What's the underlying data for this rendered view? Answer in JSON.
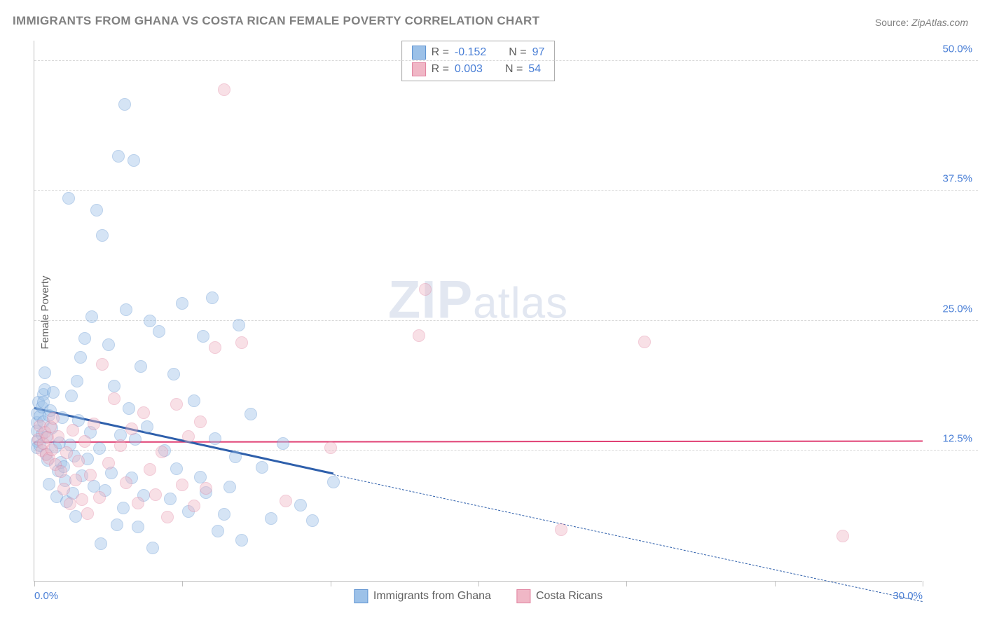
{
  "title": "IMMIGRANTS FROM GHANA VS COSTA RICAN FEMALE POVERTY CORRELATION CHART",
  "source_label": "Source: ",
  "source_value": "ZipAtlas.com",
  "ylabel": "Female Poverty",
  "watermark_a": "ZIP",
  "watermark_b": "atlas",
  "chart": {
    "type": "scatter",
    "xlim": [
      0,
      30
    ],
    "ylim": [
      0,
      52
    ],
    "background_color": "#ffffff",
    "grid_color": "#d8d8d8",
    "axis_color": "#bfbfbf",
    "tick_label_color": "#4a7fd6",
    "yticks": [
      12.5,
      25.0,
      37.5,
      50.0
    ],
    "ytick_labels": [
      "12.5%",
      "25.0%",
      "37.5%",
      "50.0%"
    ],
    "xticks": [
      0,
      5,
      10,
      15,
      20,
      25,
      30
    ],
    "xtick_labels": [
      "0.0%",
      "",
      "",
      "",
      "",
      "",
      "30.0%"
    ],
    "marker_radius": 9,
    "marker_opacity": 0.42
  },
  "series": [
    {
      "name": "Immigrants from Ghana",
      "fill": "#9cc1e8",
      "stroke": "#5e93d1",
      "trend_color": "#2e5fab",
      "trend_width": 3,
      "trend": {
        "x1": 0,
        "y1": 16.5,
        "x2": 10.1,
        "y2": 10.2,
        "x2_dash": 30.0,
        "y2_dash": -2.0
      },
      "R": "-0.152",
      "N": "97",
      "points": [
        [
          0.1,
          15.2
        ],
        [
          0.1,
          14.4
        ],
        [
          0.1,
          13.4
        ],
        [
          0.1,
          12.8
        ],
        [
          0.1,
          16.1
        ],
        [
          0.15,
          17.2
        ],
        [
          0.2,
          15.8
        ],
        [
          0.2,
          13.0
        ],
        [
          0.25,
          14.1
        ],
        [
          0.25,
          16.7
        ],
        [
          0.3,
          15.3
        ],
        [
          0.3,
          17.9
        ],
        [
          0.3,
          17.2
        ],
        [
          0.35,
          18.4
        ],
        [
          0.35,
          20.0
        ],
        [
          0.4,
          13.8
        ],
        [
          0.4,
          12.2
        ],
        [
          0.45,
          11.6
        ],
        [
          0.5,
          15.9
        ],
        [
          0.5,
          9.3
        ],
        [
          0.55,
          16.4
        ],
        [
          0.6,
          14.7
        ],
        [
          0.65,
          18.1
        ],
        [
          0.7,
          12.9
        ],
        [
          0.75,
          8.1
        ],
        [
          0.8,
          10.6
        ],
        [
          0.85,
          13.3
        ],
        [
          0.9,
          11.4
        ],
        [
          0.95,
          15.7
        ],
        [
          1.0,
          11.0
        ],
        [
          1.05,
          9.6
        ],
        [
          1.1,
          7.6
        ],
        [
          1.15,
          36.8
        ],
        [
          1.2,
          13.1
        ],
        [
          1.25,
          17.8
        ],
        [
          1.3,
          8.4
        ],
        [
          1.35,
          12.0
        ],
        [
          1.4,
          6.2
        ],
        [
          1.45,
          19.2
        ],
        [
          1.5,
          15.4
        ],
        [
          1.55,
          21.5
        ],
        [
          1.6,
          10.1
        ],
        [
          1.7,
          23.3
        ],
        [
          1.8,
          11.7
        ],
        [
          1.9,
          14.3
        ],
        [
          1.95,
          25.4
        ],
        [
          2.0,
          9.1
        ],
        [
          2.1,
          35.6
        ],
        [
          2.2,
          12.7
        ],
        [
          2.25,
          3.6
        ],
        [
          2.3,
          33.2
        ],
        [
          2.4,
          8.7
        ],
        [
          2.5,
          22.7
        ],
        [
          2.6,
          10.4
        ],
        [
          2.7,
          18.7
        ],
        [
          2.8,
          5.4
        ],
        [
          2.85,
          40.8
        ],
        [
          2.9,
          14.0
        ],
        [
          3.0,
          7.0
        ],
        [
          3.05,
          45.8
        ],
        [
          3.1,
          26.1
        ],
        [
          3.2,
          16.6
        ],
        [
          3.3,
          9.9
        ],
        [
          3.35,
          40.4
        ],
        [
          3.4,
          13.6
        ],
        [
          3.5,
          5.2
        ],
        [
          3.6,
          20.6
        ],
        [
          3.7,
          8.2
        ],
        [
          3.8,
          14.8
        ],
        [
          3.9,
          25.0
        ],
        [
          4.0,
          3.2
        ],
        [
          4.2,
          24.0
        ],
        [
          4.4,
          12.5
        ],
        [
          4.6,
          7.9
        ],
        [
          4.7,
          19.9
        ],
        [
          4.8,
          10.8
        ],
        [
          5.0,
          26.7
        ],
        [
          5.2,
          6.7
        ],
        [
          5.4,
          17.3
        ],
        [
          5.6,
          10.0
        ],
        [
          5.7,
          23.5
        ],
        [
          5.8,
          8.5
        ],
        [
          6.0,
          27.2
        ],
        [
          6.1,
          13.7
        ],
        [
          6.2,
          4.8
        ],
        [
          6.4,
          6.4
        ],
        [
          6.6,
          9.0
        ],
        [
          6.8,
          11.9
        ],
        [
          6.9,
          24.6
        ],
        [
          7.0,
          3.9
        ],
        [
          7.3,
          16.0
        ],
        [
          7.7,
          10.9
        ],
        [
          8.0,
          6.0
        ],
        [
          8.4,
          13.2
        ],
        [
          9.0,
          7.3
        ],
        [
          9.4,
          5.8
        ],
        [
          10.1,
          9.5
        ]
      ]
    },
    {
      "name": "Costa Ricans",
      "fill": "#f0b7c6",
      "stroke": "#e183a0",
      "trend_color": "#e04074",
      "trend_width": 2,
      "trend": {
        "x1": 0,
        "y1": 13.3,
        "x2": 30.0,
        "y2": 13.4
      },
      "R": "0.003",
      "N": "54",
      "points": [
        [
          0.15,
          13.6
        ],
        [
          0.2,
          14.9
        ],
        [
          0.25,
          12.5
        ],
        [
          0.3,
          13.2
        ],
        [
          0.35,
          14.3
        ],
        [
          0.4,
          12.1
        ],
        [
          0.45,
          13.8
        ],
        [
          0.5,
          11.8
        ],
        [
          0.55,
          14.8
        ],
        [
          0.6,
          12.6
        ],
        [
          0.65,
          15.6
        ],
        [
          0.7,
          11.2
        ],
        [
          0.8,
          13.9
        ],
        [
          0.9,
          10.5
        ],
        [
          1.0,
          8.8
        ],
        [
          1.1,
          12.3
        ],
        [
          1.2,
          7.4
        ],
        [
          1.3,
          14.5
        ],
        [
          1.4,
          9.7
        ],
        [
          1.5,
          11.5
        ],
        [
          1.6,
          7.8
        ],
        [
          1.7,
          13.4
        ],
        [
          1.8,
          6.5
        ],
        [
          1.9,
          10.2
        ],
        [
          2.0,
          15.1
        ],
        [
          2.2,
          8.0
        ],
        [
          2.3,
          20.8
        ],
        [
          2.5,
          11.3
        ],
        [
          2.7,
          17.5
        ],
        [
          2.9,
          13.0
        ],
        [
          3.1,
          9.4
        ],
        [
          3.3,
          14.6
        ],
        [
          3.5,
          7.5
        ],
        [
          3.7,
          16.2
        ],
        [
          3.9,
          10.7
        ],
        [
          4.1,
          8.3
        ],
        [
          4.3,
          12.4
        ],
        [
          4.5,
          6.1
        ],
        [
          4.8,
          17.0
        ],
        [
          5.0,
          9.2
        ],
        [
          5.2,
          13.9
        ],
        [
          5.4,
          7.2
        ],
        [
          5.6,
          15.3
        ],
        [
          5.8,
          8.9
        ],
        [
          6.1,
          22.4
        ],
        [
          6.4,
          47.2
        ],
        [
          7.0,
          22.9
        ],
        [
          8.5,
          7.7
        ],
        [
          10.0,
          12.8
        ],
        [
          13.0,
          23.6
        ],
        [
          13.2,
          28.0
        ],
        [
          17.8,
          4.9
        ],
        [
          20.6,
          23.0
        ],
        [
          27.3,
          4.3
        ]
      ]
    }
  ],
  "stats_labels": {
    "R": "R =",
    "N": "N ="
  },
  "legend": {
    "items": [
      "Immigrants from Ghana",
      "Costa Ricans"
    ]
  }
}
